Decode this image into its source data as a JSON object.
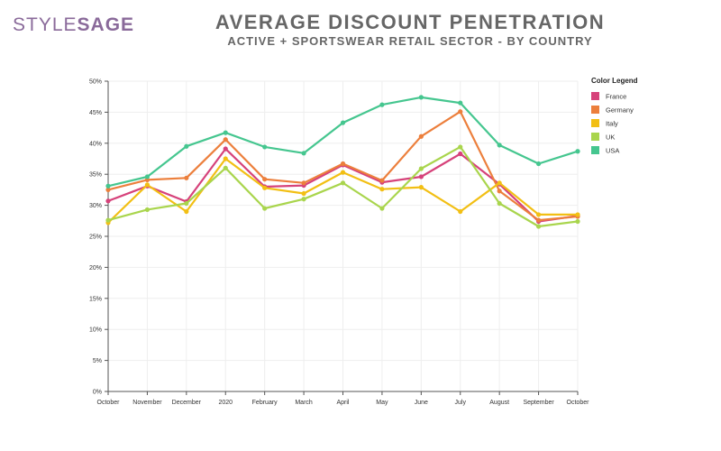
{
  "brand": {
    "style": "STYLE",
    "sage": "SAGE"
  },
  "colors": {
    "brand": "#8a6a9a",
    "France": "#d6427a",
    "Germany": "#ec7f3c",
    "Italy": "#f2bf14",
    "UK": "#a9d54d",
    "USA": "#45c68f"
  },
  "chart_data": {
    "type": "line",
    "title": "AVERAGE DISCOUNT PENETRATION",
    "subtitle": "ACTIVE + SPORTSWEAR RETAIL SECTOR - BY COUNTRY",
    "xlabel": "",
    "ylabel": "",
    "ylim": [
      0,
      50
    ],
    "yticks": [
      "0%",
      "5%",
      "10%",
      "15%",
      "20%",
      "25%",
      "30%",
      "35%",
      "40%",
      "45%",
      "50%"
    ],
    "grid": true,
    "legend_title": "Color Legend",
    "legend_position": "top-right",
    "categories": [
      "October",
      "November",
      "December",
      "2020",
      "February",
      "March",
      "April",
      "May",
      "June",
      "July",
      "August",
      "September",
      "October"
    ],
    "series": [
      {
        "name": "France",
        "values": [
          30.7,
          33.1,
          30.6,
          39.1,
          33.0,
          33.2,
          36.5,
          33.7,
          34.6,
          38.3,
          33.4,
          27.4,
          28.3
        ]
      },
      {
        "name": "Germany",
        "values": [
          32.5,
          34.1,
          34.4,
          40.6,
          34.2,
          33.6,
          36.7,
          34.0,
          41.1,
          45.1,
          32.3,
          27.6,
          28.2
        ]
      },
      {
        "name": "Italy",
        "values": [
          27.2,
          33.3,
          29.0,
          37.5,
          32.8,
          31.9,
          35.3,
          32.6,
          32.9,
          29.0,
          33.6,
          28.5,
          28.5
        ]
      },
      {
        "name": "UK",
        "values": [
          27.6,
          29.3,
          30.3,
          36.0,
          29.5,
          31.0,
          33.6,
          29.5,
          35.9,
          39.4,
          30.3,
          26.6,
          27.4
        ]
      },
      {
        "name": "USA",
        "values": [
          33.1,
          34.6,
          39.5,
          41.7,
          39.4,
          38.4,
          43.3,
          46.2,
          47.4,
          46.5,
          39.7,
          36.7,
          38.7
        ]
      }
    ]
  }
}
